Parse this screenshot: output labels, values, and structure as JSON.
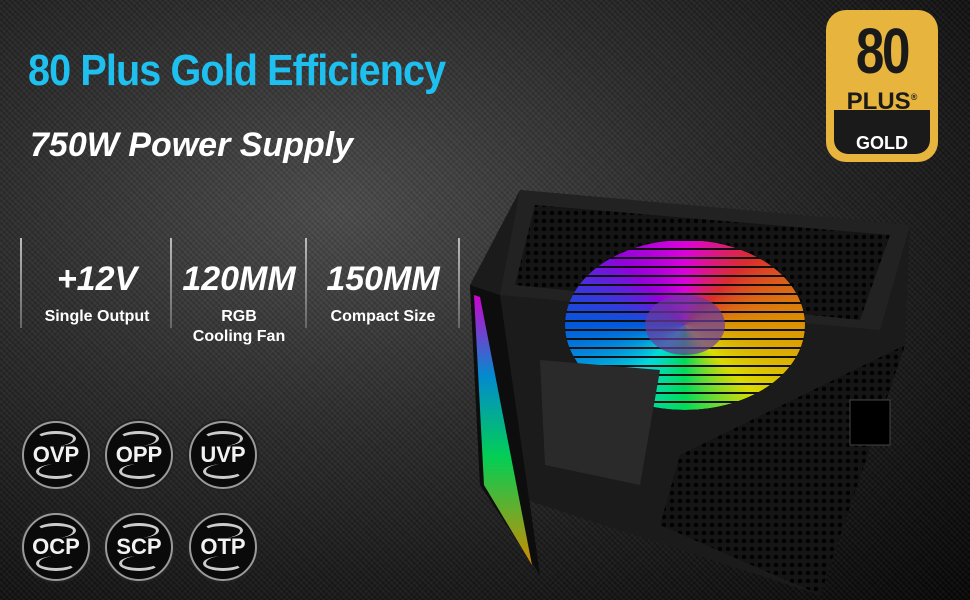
{
  "headline": "80 Plus Gold Efficiency",
  "subtitle": "750W Power Supply",
  "features": [
    {
      "value": "+12V",
      "label": "Single Output"
    },
    {
      "value": "120MM",
      "label": "RGB Cooling Fan"
    },
    {
      "value": "150MM",
      "label": "Compact Size"
    }
  ],
  "protections": [
    "OVP",
    "OPP",
    "UVP",
    "OCP",
    "SCP",
    "OTP"
  ],
  "certification": {
    "number": "80",
    "plus": "PLUS",
    "reg": "®",
    "tier": "GOLD",
    "color": "#e7b53e"
  },
  "colors": {
    "headline": "#1ec0f0"
  }
}
